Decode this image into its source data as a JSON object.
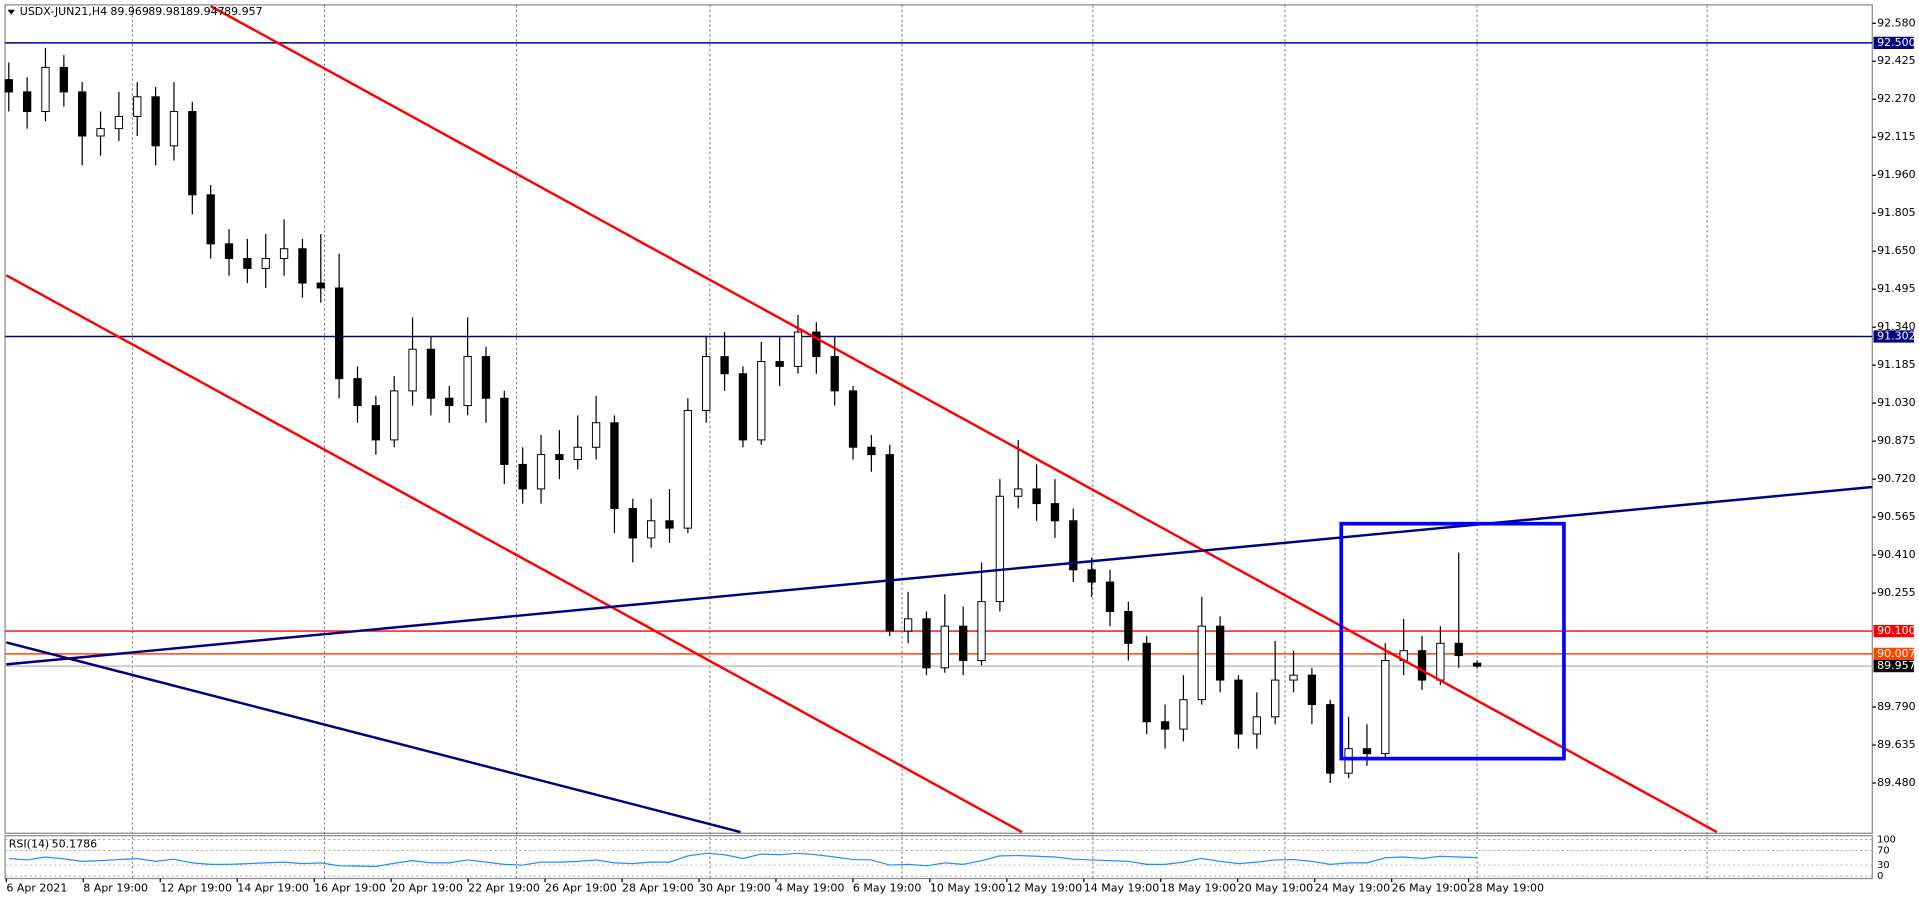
{
  "chart_data": {
    "type": "candlestick",
    "symbol": "USDX-JUN21,H4",
    "ohlc": [
      89.969,
      89.981,
      89.947,
      89.957
    ],
    "x_labels": [
      "6 Apr 2021",
      "8 Apr 19:00",
      "12 Apr 19:00",
      "14 Apr 19:00",
      "16 Apr 19:00",
      "20 Apr 19:00",
      "22 Apr 19:00",
      "26 Apr 19:00",
      "28 Apr 19:00",
      "30 Apr 19:00",
      "4 May 19:00",
      "6 May 19:00",
      "10 May 19:00",
      "12 May 19:00",
      "14 May 19:00",
      "18 May 19:00",
      "20 May 19:00",
      "24 May 19:00",
      "26 May 19:00",
      "28 May 19:00"
    ],
    "candles": [
      [
        92.35,
        92.42,
        92.22,
        92.3
      ],
      [
        92.3,
        92.36,
        92.15,
        92.22
      ],
      [
        92.22,
        92.48,
        92.18,
        92.4
      ],
      [
        92.4,
        92.45,
        92.24,
        92.3
      ],
      [
        92.3,
        92.34,
        92.0,
        92.12
      ],
      [
        92.12,
        92.22,
        92.04,
        92.15
      ],
      [
        92.15,
        92.3,
        92.1,
        92.2
      ],
      [
        92.2,
        92.34,
        92.12,
        92.28
      ],
      [
        92.28,
        92.32,
        92.0,
        92.08
      ],
      [
        92.08,
        92.34,
        92.02,
        92.22
      ],
      [
        92.22,
        92.26,
        91.8,
        91.88
      ],
      [
        91.88,
        91.92,
        91.62,
        91.68
      ],
      [
        91.68,
        91.74,
        91.55,
        91.62
      ],
      [
        91.62,
        91.7,
        91.52,
        91.58
      ],
      [
        91.58,
        91.72,
        91.5,
        91.62
      ],
      [
        91.62,
        91.78,
        91.55,
        91.66
      ],
      [
        91.66,
        91.7,
        91.46,
        91.52
      ],
      [
        91.52,
        91.72,
        91.44,
        91.5
      ],
      [
        91.5,
        91.64,
        91.05,
        91.13
      ],
      [
        91.13,
        91.18,
        90.95,
        91.02
      ],
      [
        91.02,
        91.06,
        90.82,
        90.88
      ],
      [
        90.88,
        91.14,
        90.85,
        91.08
      ],
      [
        91.08,
        91.38,
        91.02,
        91.25
      ],
      [
        91.25,
        91.3,
        90.98,
        91.05
      ],
      [
        91.05,
        91.1,
        90.95,
        91.02
      ],
      [
        91.02,
        91.38,
        90.98,
        91.22
      ],
      [
        91.22,
        91.26,
        90.95,
        91.05
      ],
      [
        91.05,
        91.08,
        90.7,
        90.78
      ],
      [
        90.78,
        90.85,
        90.62,
        90.68
      ],
      [
        90.68,
        90.9,
        90.62,
        90.82
      ],
      [
        90.82,
        90.92,
        90.72,
        90.8
      ],
      [
        90.8,
        90.98,
        90.76,
        90.85
      ],
      [
        90.85,
        91.06,
        90.8,
        90.95
      ],
      [
        90.95,
        90.98,
        90.5,
        90.6
      ],
      [
        90.6,
        90.64,
        90.38,
        90.48
      ],
      [
        90.48,
        90.64,
        90.44,
        90.55
      ],
      [
        90.55,
        90.68,
        90.46,
        90.52
      ],
      [
        90.52,
        91.05,
        90.5,
        91.0
      ],
      [
        91.0,
        91.3,
        90.95,
        91.22
      ],
      [
        91.22,
        91.32,
        91.08,
        91.15
      ],
      [
        91.15,
        91.18,
        90.85,
        90.88
      ],
      [
        90.88,
        91.28,
        90.86,
        91.2
      ],
      [
        91.2,
        91.3,
        91.1,
        91.18
      ],
      [
        91.18,
        91.39,
        91.15,
        91.32
      ],
      [
        91.32,
        91.36,
        91.15,
        91.22
      ],
      [
        91.22,
        91.3,
        91.02,
        91.08
      ],
      [
        91.08,
        91.1,
        90.8,
        90.85
      ],
      [
        90.85,
        90.9,
        90.75,
        90.82
      ],
      [
        90.82,
        90.86,
        90.08,
        90.1
      ],
      [
        90.1,
        90.26,
        90.05,
        90.15
      ],
      [
        90.15,
        90.18,
        89.92,
        89.95
      ],
      [
        89.95,
        90.25,
        89.93,
        90.12
      ],
      [
        90.12,
        90.2,
        89.92,
        89.98
      ],
      [
        89.98,
        90.38,
        89.96,
        90.22
      ],
      [
        90.22,
        90.72,
        90.18,
        90.65
      ],
      [
        90.65,
        90.88,
        90.6,
        90.68
      ],
      [
        90.68,
        90.78,
        90.55,
        90.62
      ],
      [
        90.62,
        90.72,
        90.48,
        90.55
      ],
      [
        90.55,
        90.6,
        90.3,
        90.35
      ],
      [
        90.35,
        90.4,
        90.24,
        90.3
      ],
      [
        90.3,
        90.35,
        90.12,
        90.18
      ],
      [
        90.18,
        90.22,
        89.98,
        90.05
      ],
      [
        90.05,
        90.08,
        89.68,
        89.73
      ],
      [
        89.73,
        89.8,
        89.62,
        89.7
      ],
      [
        89.7,
        89.92,
        89.65,
        89.82
      ],
      [
        89.82,
        90.24,
        89.8,
        90.12
      ],
      [
        90.12,
        90.16,
        89.85,
        89.9
      ],
      [
        89.9,
        89.92,
        89.62,
        89.68
      ],
      [
        89.68,
        89.85,
        89.62,
        89.75
      ],
      [
        89.75,
        90.06,
        89.72,
        89.9
      ],
      [
        89.9,
        90.02,
        89.85,
        89.92
      ],
      [
        89.92,
        89.95,
        89.72,
        89.8
      ],
      [
        89.8,
        89.82,
        89.48,
        89.52
      ],
      [
        89.52,
        89.75,
        89.5,
        89.62
      ],
      [
        89.62,
        89.72,
        89.55,
        89.6
      ],
      [
        89.6,
        90.05,
        89.58,
        89.98
      ],
      [
        89.98,
        90.15,
        89.92,
        90.02
      ],
      [
        90.02,
        90.08,
        89.86,
        89.9
      ],
      [
        89.9,
        90.12,
        89.88,
        90.05
      ],
      [
        90.05,
        90.42,
        89.95,
        90.0
      ],
      [
        89.969,
        89.981,
        89.947,
        89.957
      ]
    ],
    "ylim": [
      89.28,
      92.65
    ],
    "yticks": [
      {
        "value": 92.58,
        "label": "92.580"
      },
      92.425,
      {
        "value": 92.27,
        "label": "92.270"
      },
      92.115,
      {
        "value": 91.96,
        "label": "91.960"
      },
      91.805,
      {
        "value": 91.65,
        "label": "91.650"
      },
      91.495,
      {
        "value": 91.34,
        "label": "91.340"
      },
      91.185,
      {
        "value": 91.03,
        "label": "91.030"
      },
      90.875,
      {
        "value": 90.72,
        "label": "90.720"
      },
      90.565,
      {
        "value": 90.41,
        "label": "90.410"
      },
      90.255,
      {
        "value": 89.79,
        "label": "89.790"
      },
      89.635,
      {
        "value": 89.48,
        "label": "89.480"
      }
    ],
    "levels": [
      {
        "value": 92.5,
        "label": "92.500",
        "color": "#000080"
      },
      {
        "value": 91.302,
        "label": "91.302",
        "color": "#000080"
      },
      {
        "value": 90.1,
        "label": "90.100",
        "color": "#ff0000"
      },
      {
        "value": 90.007,
        "label": "90.007",
        "color": "#ff4500"
      },
      {
        "value": 89.957,
        "label": "89.957",
        "color": "#c0c0c0"
      }
    ],
    "bull_color": "#ffffff",
    "bear_color": "#000000",
    "indicator": {
      "name": "RSI(14)",
      "color": "#1e90ff",
      "ylim": [
        0,
        100
      ],
      "yticks": [
        0,
        30,
        70,
        100
      ],
      "values": [
        48,
        44,
        52,
        47,
        40,
        42,
        45,
        48,
        40,
        46,
        36,
        32,
        32,
        34,
        36,
        38,
        34,
        36,
        28,
        27,
        26,
        35,
        42,
        36,
        36,
        44,
        38,
        32,
        30,
        38,
        38,
        40,
        44,
        36,
        34,
        38,
        38,
        55,
        62,
        58,
        48,
        60,
        58,
        62,
        58,
        52,
        45,
        44,
        30,
        32,
        28,
        36,
        32,
        42,
        55,
        56,
        54,
        52,
        46,
        44,
        42,
        40,
        32,
        32,
        38,
        48,
        40,
        34,
        38,
        44,
        45,
        40,
        32,
        36,
        36,
        50,
        52,
        48,
        54,
        52,
        50.1786
      ]
    }
  }
}
